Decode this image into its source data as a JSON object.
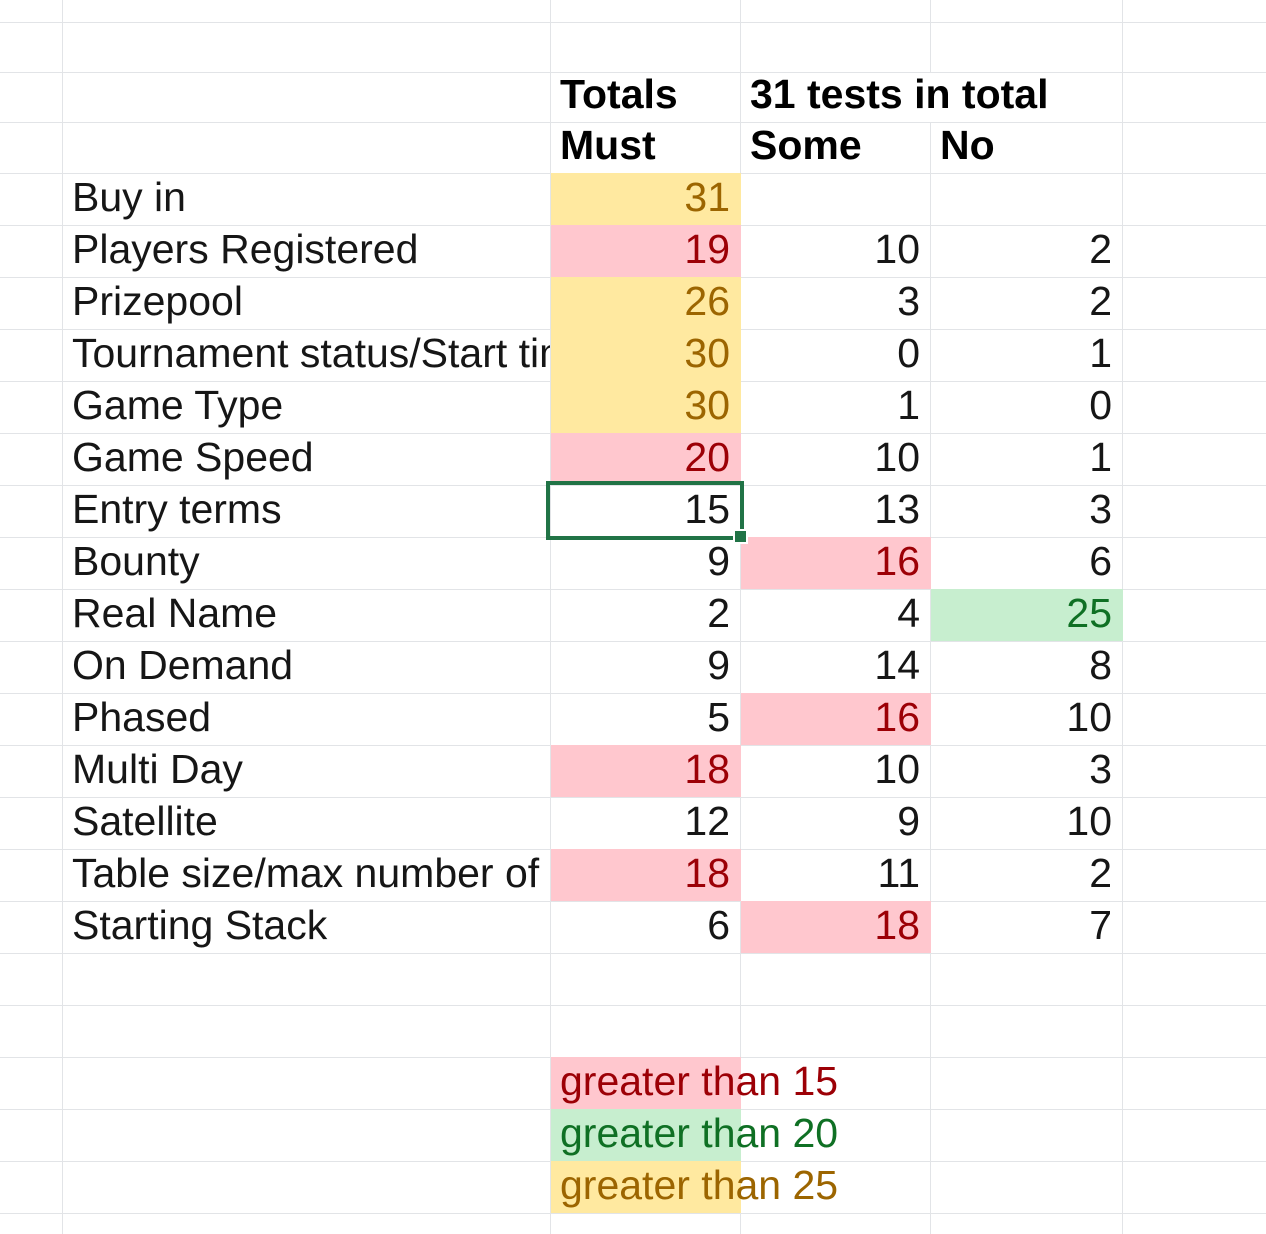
{
  "header": {
    "totals_label": "Totals",
    "tests_note": "31 tests in total",
    "col_must": "Must",
    "col_some": "Some",
    "col_no": "No"
  },
  "rows": [
    {
      "label": "Buy in",
      "must": "31",
      "must_style": "yellow",
      "some": "",
      "some_style": null,
      "no": "",
      "no_style": null
    },
    {
      "label": "Players Registered",
      "must": "19",
      "must_style": "pink",
      "some": "10",
      "some_style": null,
      "no": "2",
      "no_style": null
    },
    {
      "label": "Prizepool",
      "must": "26",
      "must_style": "yellow",
      "some": "3",
      "some_style": null,
      "no": "2",
      "no_style": null
    },
    {
      "label": "Tournament status/Start tim",
      "must": "30",
      "must_style": "yellow",
      "some": "0",
      "some_style": null,
      "no": "1",
      "no_style": null
    },
    {
      "label": "Game Type",
      "must": "30",
      "must_style": "yellow",
      "some": "1",
      "some_style": null,
      "no": "0",
      "no_style": null
    },
    {
      "label": "Game Speed",
      "must": "20",
      "must_style": "pink",
      "some": "10",
      "some_style": null,
      "no": "1",
      "no_style": null
    },
    {
      "label": "Entry terms",
      "must": "15",
      "must_style": null,
      "some": "13",
      "some_style": null,
      "no": "3",
      "no_style": null
    },
    {
      "label": "Bounty",
      "must": "9",
      "must_style": null,
      "some": "16",
      "some_style": "pink",
      "no": "6",
      "no_style": null
    },
    {
      "label": "Real Name",
      "must": "2",
      "must_style": null,
      "some": "4",
      "some_style": null,
      "no": "25",
      "no_style": "green"
    },
    {
      "label": "On Demand",
      "must": "9",
      "must_style": null,
      "some": "14",
      "some_style": null,
      "no": "8",
      "no_style": null
    },
    {
      "label": "Phased",
      "must": "5",
      "must_style": null,
      "some": "16",
      "some_style": "pink",
      "no": "10",
      "no_style": null
    },
    {
      "label": "Multi Day",
      "must": "18",
      "must_style": "pink",
      "some": "10",
      "some_style": null,
      "no": "3",
      "no_style": null
    },
    {
      "label": "Satellite",
      "must": "12",
      "must_style": null,
      "some": "9",
      "some_style": null,
      "no": "10",
      "no_style": null
    },
    {
      "label": "Table size/max number of p",
      "must": "18",
      "must_style": "pink",
      "some": "11",
      "some_style": null,
      "no": "2",
      "no_style": null
    },
    {
      "label": "Starting Stack",
      "must": "6",
      "must_style": null,
      "some": "18",
      "some_style": "pink",
      "no": "7",
      "no_style": null
    }
  ],
  "legend": [
    {
      "label": "greater than 15",
      "style": "pink"
    },
    {
      "label": "greater than 20",
      "style": "green"
    },
    {
      "label": "greater than 25",
      "style": "yellow"
    }
  ],
  "styles": {
    "yellow": {
      "bg": "#ffe9a0",
      "fg": "#9c6500"
    },
    "pink": {
      "bg": "#ffc7ce",
      "fg": "#9c0006"
    },
    "green": {
      "bg": "#c7eecf",
      "fg": "#0f7024"
    }
  },
  "selection": {
    "row_label": "Entry terms",
    "column": "Must",
    "value": "15",
    "color": "#217346"
  },
  "gridline_color": "#e2e4e7"
}
